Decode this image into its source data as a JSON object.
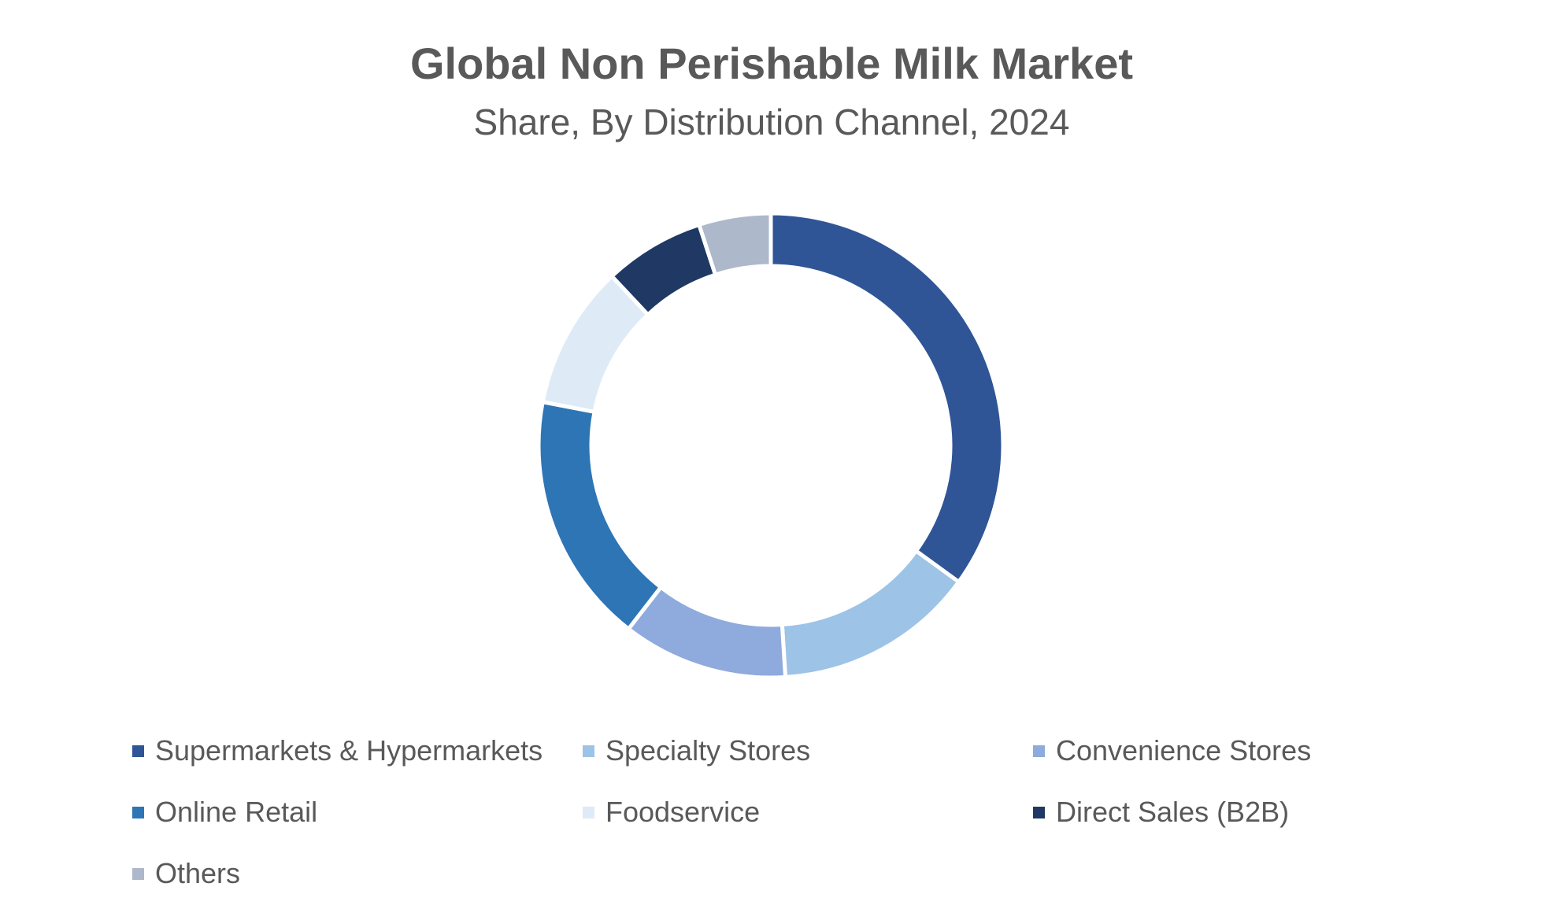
{
  "chart_data": {
    "type": "pie",
    "variant": "donut",
    "title": "Global Non Perishable Milk Market",
    "subtitle": "Share, By Distribution Channel, 2024",
    "legend_position": "bottom",
    "categories": [
      "Supermarkets & Hypermarkets",
      "Specialty Stores",
      "Convenience Stores",
      "Online Retail",
      "Foodservice",
      "Direct Sales (B2B)",
      "Others"
    ],
    "values": [
      35,
      14,
      11.5,
      17.5,
      10,
      7,
      5
    ],
    "colors": [
      "#2F5597",
      "#9DC3E6",
      "#8FAADC",
      "#2E75B6",
      "#DEEBF7",
      "#1F3864",
      "#ADB9CA"
    ]
  }
}
